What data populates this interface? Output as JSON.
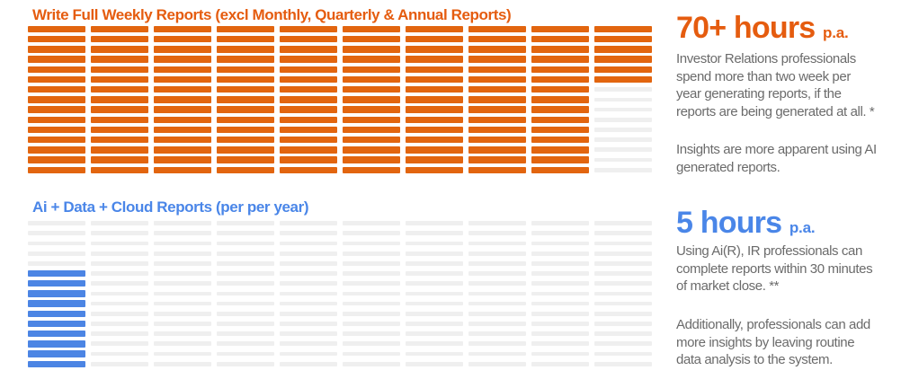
{
  "colors": {
    "orange_fill": "#E2650F",
    "orange_text": "#E55C0F",
    "blue_fill": "#4C85E4",
    "blue_text": "#4A86E8",
    "empty_bar": "#EFEFEF",
    "body_text": "#6B6B6B",
    "background": "#FFFFFF"
  },
  "chart_data": [
    {
      "type": "bar",
      "subtype": "pictogram_unit_grid",
      "title": "Write Full Weekly Reports (excl Monthly, Quarterly &  Annual Reports)",
      "unit_columns": 10,
      "unit_rows": 15,
      "filled_units": 141,
      "total_units": 150,
      "columns_fill": [
        15,
        15,
        15,
        15,
        15,
        15,
        15,
        15,
        15,
        6
      ],
      "fill_from": "top",
      "value_label": "70+ hours p.a.",
      "fill_color": "#E2650F",
      "empty_color": "#EFEFEF",
      "legend_position": "none",
      "grid": "off"
    },
    {
      "type": "bar",
      "subtype": "pictogram_unit_grid",
      "title": "Ai + Data + Cloud Reports (per per year)",
      "unit_columns": 10,
      "unit_rows": 15,
      "filled_units": 10,
      "total_units": 150,
      "columns_fill": [
        10,
        0,
        0,
        0,
        0,
        0,
        0,
        0,
        0,
        0
      ],
      "fill_from": "bottom",
      "value_label": "5 hours p.a.",
      "fill_color": "#4C85E4",
      "empty_color": "#EFEFEF",
      "legend_position": "none",
      "grid": "off"
    }
  ],
  "sections": {
    "weekly": {
      "title": "Write Full Weekly Reports (excl Monthly, Quarterly &  Annual Reports)",
      "stat_value": "70+ hours",
      "stat_suffix": "p.a.",
      "para1": "Investor Relations professionals spend more than two  week per year generating reports, if the reports are being generated at all. *",
      "para2": "Insights are more apparent using AI generated reports."
    },
    "ai": {
      "title": "Ai + Data + Cloud Reports (per per year)",
      "stat_value": "5 hours",
      "stat_suffix": "p.a.",
      "para1": "Using Ai(R), IR professionals can complete reports within 30 minutes of market close. **",
      "para2": "Additionally, professionals can add more insights by leaving routine data analysis to the system."
    }
  }
}
